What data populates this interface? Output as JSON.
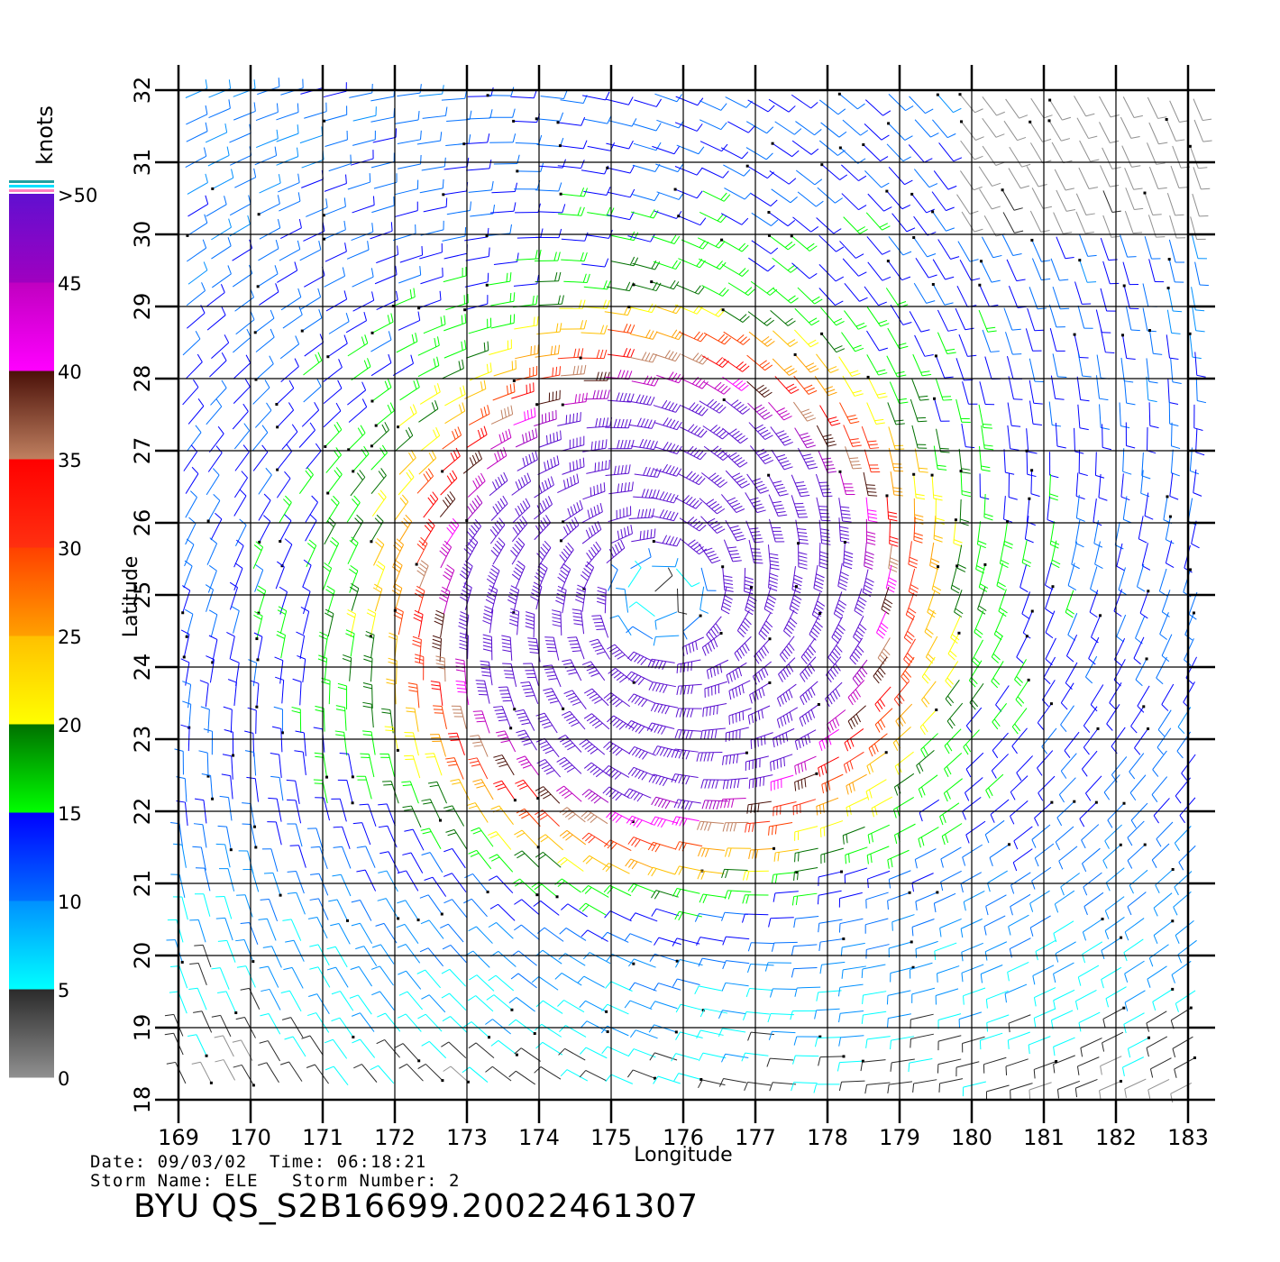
{
  "chart_data": {
    "type": "wind-barb-map",
    "xlabel": "Longitude",
    "ylabel": "Latitude",
    "xlim": [
      169,
      183
    ],
    "ylim": [
      18,
      32
    ],
    "x_ticks": [
      "169",
      "170",
      "171",
      "172",
      "173",
      "174",
      "175",
      "176",
      "177",
      "178",
      "179",
      "180",
      "181",
      "182",
      "183"
    ],
    "y_ticks": [
      "18",
      "19",
      "20",
      "21",
      "22",
      "23",
      "24",
      "25",
      "26",
      "27",
      "28",
      "29",
      "30",
      "31",
      "32"
    ],
    "grid": true,
    "storm_center": {
      "lon": 175.7,
      "lat": 25.0
    },
    "legend": {
      "unit": "knots",
      "tick_labels": [
        "0",
        "5",
        "10",
        "15",
        "20",
        "25",
        "30",
        "35",
        "40",
        "45",
        ">50"
      ],
      "bands": [
        {
          "from": 0,
          "to": 5,
          "color_top": "#2a2a2a",
          "color_bottom": "#909090"
        },
        {
          "from": 5,
          "to": 10,
          "color_top": "#0090ff",
          "color_bottom": "#00ffff"
        },
        {
          "from": 10,
          "to": 15,
          "color_top": "#0000ff",
          "color_bottom": "#0070ff"
        },
        {
          "from": 15,
          "to": 20,
          "color_top": "#007000",
          "color_bottom": "#00ff00"
        },
        {
          "from": 20,
          "to": 25,
          "color_top": "#ffc000",
          "color_bottom": "#ffff00"
        },
        {
          "from": 25,
          "to": 30,
          "color_top": "#ff4000",
          "color_bottom": "#ffa000"
        },
        {
          "from": 30,
          "to": 35,
          "color_top": "#ff0000",
          "color_bottom": "#ff3010"
        },
        {
          "from": 35,
          "to": 40,
          "color_top": "#4a1008",
          "color_bottom": "#c08060"
        },
        {
          "from": 40,
          "to": 45,
          "color_top": "#c000c0",
          "color_bottom": "#ff00ff"
        },
        {
          "from": 45,
          "to": 50,
          "color_top": "#6010d0",
          "color_bottom": "#a000c0"
        }
      ]
    }
  },
  "footer": {
    "date_line": "Date: 09/03/02  Time: 06:18:21",
    "storm_line": "Storm Name: ELE   Storm Number: 2",
    "title": "BYU QS_S2B16699.20022461307"
  }
}
